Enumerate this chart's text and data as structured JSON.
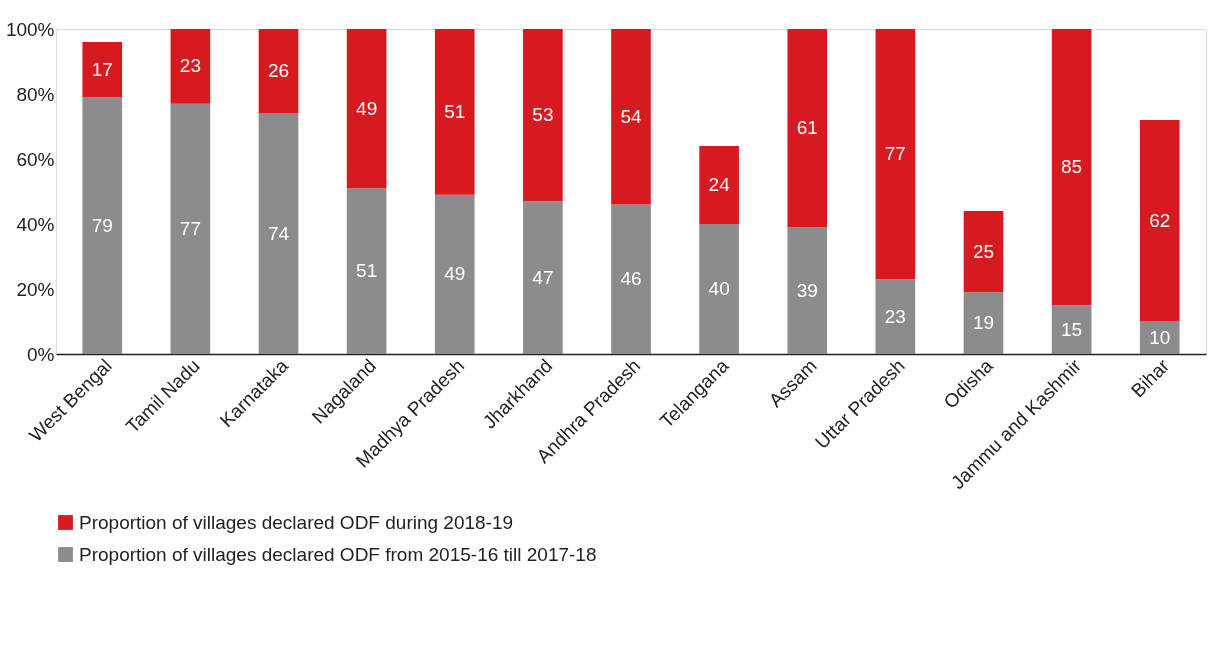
{
  "chart_data": {
    "type": "bar",
    "stacked": true,
    "data_labels": true,
    "legend": "bottom",
    "grid": false,
    "categories": [
      "West Bengal",
      "Tamil Nadu",
      "Karnataka",
      "Nagaland",
      "Madhya Pradesh",
      "Jharkhand",
      "Andhra Pradesh",
      "Telangana",
      "Assam",
      "Uttar Pradesh",
      "Odisha",
      "Jammu and Kashmir",
      "Bihar"
    ],
    "series": [
      {
        "name": "Proportion of villages declared ODF from 2015-16 till 2017-18",
        "color": "#8c8c8e",
        "values": [
          79,
          77,
          74,
          51,
          49,
          47,
          46,
          40,
          39,
          23,
          19,
          15,
          10
        ]
      },
      {
        "name": "Proportion of villages declared ODF during 2018-19",
        "color": "#d71920",
        "values": [
          17,
          23,
          26,
          49,
          51,
          53,
          54,
          24,
          61,
          77,
          25,
          85,
          62
        ]
      }
    ],
    "ylim": [
      0,
      100
    ],
    "yticks": [
      {
        "value": 0,
        "label": "0%"
      },
      {
        "value": 20,
        "label": "20%"
      },
      {
        "value": 40,
        "label": "40%"
      },
      {
        "value": 60,
        "label": "60%"
      },
      {
        "value": 80,
        "label": "80%"
      },
      {
        "value": 100,
        "label": "100%"
      }
    ]
  }
}
